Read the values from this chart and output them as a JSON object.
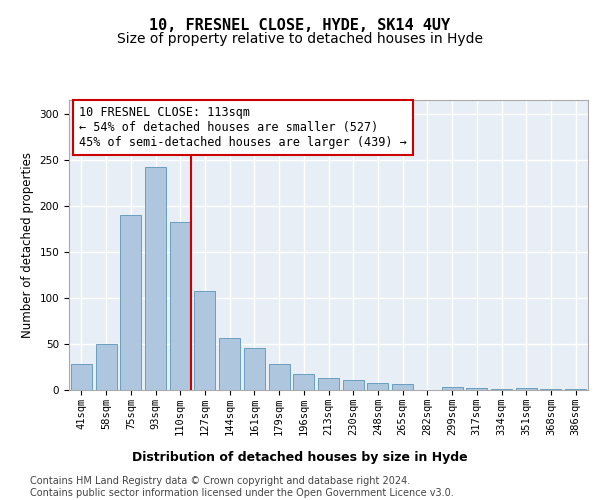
{
  "title1": "10, FRESNEL CLOSE, HYDE, SK14 4UY",
  "title2": "Size of property relative to detached houses in Hyde",
  "xlabel": "Distribution of detached houses by size in Hyde",
  "ylabel": "Number of detached properties",
  "categories": [
    "41sqm",
    "58sqm",
    "75sqm",
    "93sqm",
    "110sqm",
    "127sqm",
    "144sqm",
    "161sqm",
    "179sqm",
    "196sqm",
    "213sqm",
    "230sqm",
    "248sqm",
    "265sqm",
    "282sqm",
    "299sqm",
    "317sqm",
    "334sqm",
    "351sqm",
    "368sqm",
    "386sqm"
  ],
  "values": [
    28,
    50,
    190,
    242,
    182,
    107,
    57,
    46,
    28,
    17,
    13,
    11,
    8,
    6,
    0,
    3,
    2,
    1,
    2,
    1,
    1
  ],
  "bar_color": "#aec6de",
  "bar_edge_color": "#6a9fc0",
  "background_color": "#e8eef5",
  "grid_color": "#ffffff",
  "annotation_box_text": "10 FRESNEL CLOSE: 113sqm\n← 54% of detached houses are smaller (527)\n45% of semi-detached houses are larger (439) →",
  "annotation_box_color": "#ffffff",
  "annotation_box_edge_color": "#cc0000",
  "vline_color": "#cc0000",
  "vline_x": 4.42,
  "ylim": [
    0,
    315
  ],
  "yticks": [
    0,
    50,
    100,
    150,
    200,
    250,
    300
  ],
  "footer": "Contains HM Land Registry data © Crown copyright and database right 2024.\nContains public sector information licensed under the Open Government Licence v3.0.",
  "title1_fontsize": 11,
  "title2_fontsize": 10,
  "xlabel_fontsize": 9,
  "ylabel_fontsize": 8.5,
  "tick_fontsize": 7.5,
  "annotation_fontsize": 8.5,
  "footer_fontsize": 7
}
